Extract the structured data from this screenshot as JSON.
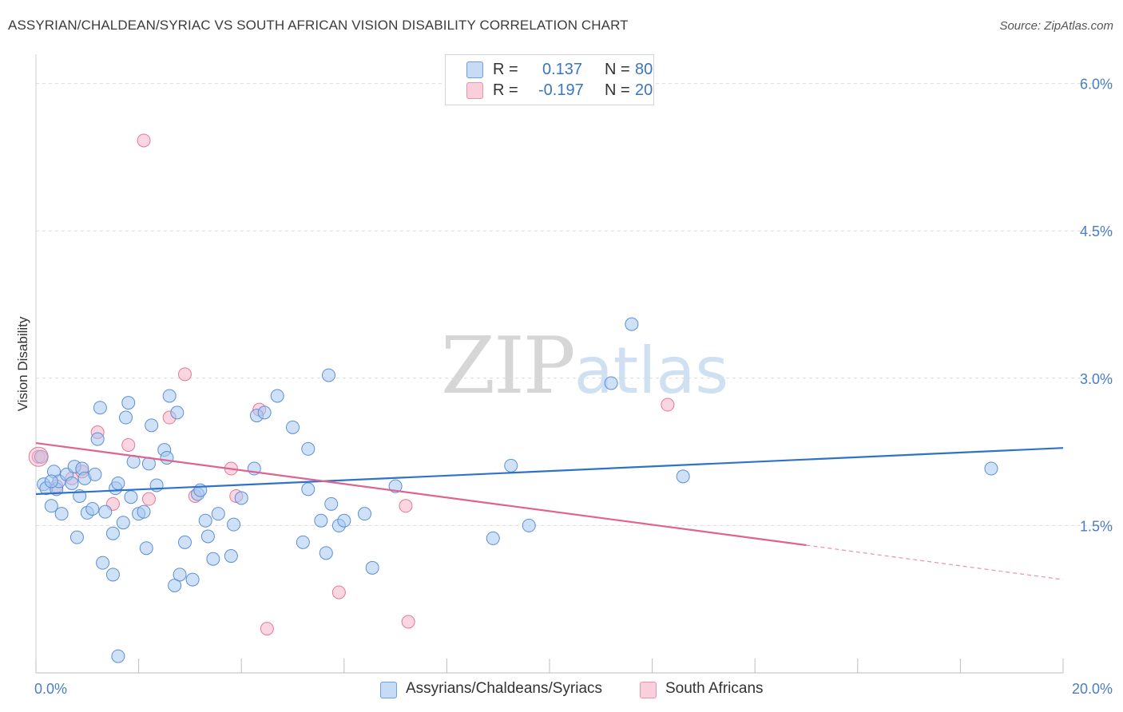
{
  "header": {
    "title": "ASSYRIAN/CHALDEAN/SYRIAC VS SOUTH AFRICAN VISION DISABILITY CORRELATION CHART",
    "source": "Source: ZipAtlas.com"
  },
  "watermark": {
    "zip": "ZIP",
    "atlas": "atlas"
  },
  "legend": {
    "rows": [
      {
        "r_label": "R =",
        "r_value": "0.137",
        "n_label": "N =",
        "n_value": "80",
        "color": "#a8c8f0"
      },
      {
        "r_label": "R =",
        "r_value": "-0.197",
        "n_label": "N =",
        "n_value": "20",
        "color": "#f6b5c8"
      }
    ]
  },
  "bottom_legend": {
    "series1": "Assyrians/Chaldeans/Syriacs",
    "series2": "South Africans"
  },
  "colors": {
    "blue_fill": "#a8c8f0",
    "blue_stroke": "#5b8fd6",
    "blue_line": "#2f72c9",
    "pink_fill": "#f6b5c8",
    "pink_stroke": "#e4789c",
    "pink_line": "#e0638f",
    "value_text": "#3a74c6",
    "grid": "#dcdcdc"
  },
  "chart_data": {
    "type": "scatter",
    "title": "ASSYRIAN/CHALDEAN/SYRIAC VS SOUTH AFRICAN VISION DISABILITY CORRELATION CHART",
    "ylabel": "Vision Disability",
    "xlabel": "",
    "xlim": [
      0,
      20
    ],
    "ylim": [
      0,
      6.2
    ],
    "y_ticks": [
      1.5,
      3.0,
      4.5,
      6.0
    ],
    "y_tick_labels": [
      "1.5%",
      "3.0%",
      "4.5%",
      "6.0%"
    ],
    "x_tick_labels": [
      "0.0%",
      "20.0%"
    ],
    "grid": true,
    "series": [
      {
        "name": "Assyrians/Chaldeans/Syriacs",
        "r": 0.137,
        "n": 80,
        "trend": {
          "x": [
            0,
            20
          ],
          "y": [
            1.82,
            2.29
          ]
        },
        "points": [
          [
            0.1,
            2.2
          ],
          [
            0.15,
            1.92
          ],
          [
            0.2,
            1.88
          ],
          [
            0.3,
            1.7
          ],
          [
            0.35,
            2.05
          ],
          [
            0.4,
            1.87
          ],
          [
            0.45,
            1.95
          ],
          [
            0.5,
            1.62
          ],
          [
            0.6,
            2.02
          ],
          [
            0.7,
            1.93
          ],
          [
            0.75,
            2.1
          ],
          [
            0.8,
            1.38
          ],
          [
            0.85,
            1.8
          ],
          [
            0.9,
            2.08
          ],
          [
            0.95,
            1.98
          ],
          [
            1.0,
            1.63
          ],
          [
            1.1,
            1.67
          ],
          [
            1.15,
            2.02
          ],
          [
            1.2,
            2.38
          ],
          [
            1.3,
            1.12
          ],
          [
            1.35,
            1.64
          ],
          [
            1.5,
            1.42
          ],
          [
            1.55,
            1.88
          ],
          [
            1.6,
            1.93
          ],
          [
            1.7,
            1.53
          ],
          [
            1.75,
            2.6
          ],
          [
            1.8,
            2.75
          ],
          [
            1.85,
            1.79
          ],
          [
            1.9,
            2.15
          ],
          [
            2.0,
            1.62
          ],
          [
            2.1,
            1.64
          ],
          [
            2.15,
            1.27
          ],
          [
            2.2,
            2.13
          ],
          [
            2.25,
            2.52
          ],
          [
            2.35,
            1.91
          ],
          [
            2.5,
            2.27
          ],
          [
            2.55,
            2.19
          ],
          [
            2.6,
            2.82
          ],
          [
            2.7,
            0.89
          ],
          [
            2.75,
            2.65
          ],
          [
            2.8,
            1.0
          ],
          [
            2.9,
            1.33
          ],
          [
            3.05,
            0.95
          ],
          [
            3.15,
            1.82
          ],
          [
            3.2,
            1.86
          ],
          [
            3.35,
            1.39
          ],
          [
            3.45,
            1.16
          ],
          [
            3.55,
            1.62
          ],
          [
            3.8,
            1.19
          ],
          [
            3.85,
            1.51
          ],
          [
            4.0,
            1.78
          ],
          [
            4.25,
            2.08
          ],
          [
            4.3,
            2.62
          ],
          [
            4.45,
            2.65
          ],
          [
            4.7,
            2.82
          ],
          [
            5.0,
            2.5
          ],
          [
            5.2,
            1.33
          ],
          [
            5.3,
            2.28
          ],
          [
            5.3,
            1.87
          ],
          [
            5.55,
            1.55
          ],
          [
            5.65,
            1.22
          ],
          [
            5.7,
            3.03
          ],
          [
            5.75,
            1.72
          ],
          [
            5.9,
            1.5
          ],
          [
            6.0,
            1.55
          ],
          [
            6.4,
            1.62
          ],
          [
            6.55,
            1.07
          ],
          [
            7.0,
            1.9
          ],
          [
            8.9,
            1.37
          ],
          [
            9.25,
            2.11
          ],
          [
            9.6,
            1.5
          ],
          [
            11.2,
            2.95
          ],
          [
            11.6,
            3.55
          ],
          [
            12.6,
            2.0
          ],
          [
            18.6,
            2.08
          ],
          [
            1.5,
            1.0
          ],
          [
            0.3,
            1.95
          ],
          [
            1.25,
            2.7
          ],
          [
            3.3,
            1.55
          ],
          [
            1.6,
            0.17
          ]
        ]
      },
      {
        "name": "South Africans",
        "r": -0.197,
        "n": 20,
        "trend": {
          "x": [
            0,
            15
          ],
          "y": [
            2.34,
            1.3
          ]
        },
        "trend_dashed": {
          "x": [
            15,
            20
          ],
          "y": [
            1.3,
            0.95
          ]
        },
        "points": [
          [
            0.05,
            2.2
          ],
          [
            0.7,
            1.98
          ],
          [
            0.9,
            2.05
          ],
          [
            1.2,
            2.45
          ],
          [
            1.5,
            1.72
          ],
          [
            1.8,
            2.32
          ],
          [
            2.1,
            5.42
          ],
          [
            2.2,
            1.77
          ],
          [
            2.6,
            2.6
          ],
          [
            2.9,
            3.04
          ],
          [
            3.1,
            1.8
          ],
          [
            3.8,
            2.08
          ],
          [
            3.9,
            1.8
          ],
          [
            4.35,
            2.68
          ],
          [
            4.5,
            0.45
          ],
          [
            5.9,
            0.82
          ],
          [
            7.2,
            1.7
          ],
          [
            7.25,
            0.52
          ],
          [
            12.3,
            2.73
          ],
          [
            0.4,
            1.9
          ]
        ]
      }
    ]
  }
}
